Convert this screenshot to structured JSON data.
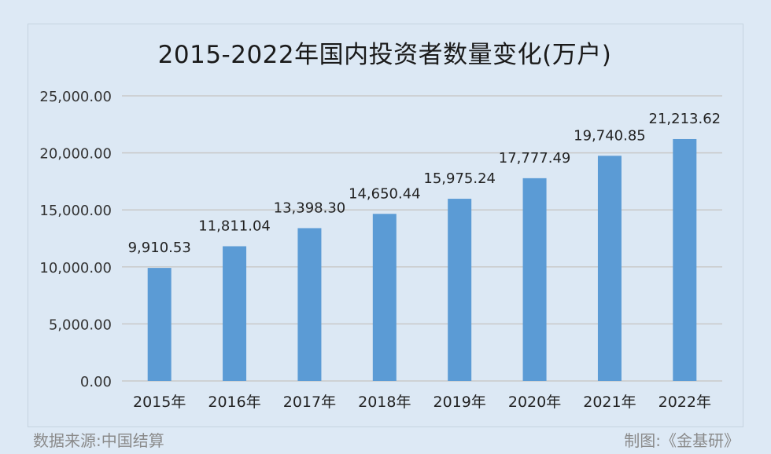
{
  "chart_data": {
    "type": "bar",
    "title": "2015-2022年国内投资者数量变化(万户)",
    "categories": [
      "2015年",
      "2016年",
      "2017年",
      "2018年",
      "2019年",
      "2020年",
      "2021年",
      "2022年"
    ],
    "values": [
      9910.53,
      11811.04,
      13398.3,
      14650.44,
      15975.24,
      17777.49,
      19740.85,
      21213.62
    ],
    "data_labels": [
      "9,910.53",
      "11,811.04",
      "13,398.30",
      "14,650.44",
      "15,975.24",
      "17,777.49",
      "19,740.85",
      "21,213.62"
    ],
    "yticks": [
      "0.00",
      "5,000.00",
      "10,000.00",
      "15,000.00",
      "20,000.00",
      "25,000.00"
    ],
    "ylim": [
      0,
      25000
    ],
    "xlabel": "",
    "ylabel": "",
    "grid": true,
    "legend": "none",
    "bar_color": "#5b9bd5",
    "grid_color": "#c9c9c9"
  },
  "footer": {
    "source": "数据来源:中国结算",
    "credit": "制图:《金基研》"
  }
}
